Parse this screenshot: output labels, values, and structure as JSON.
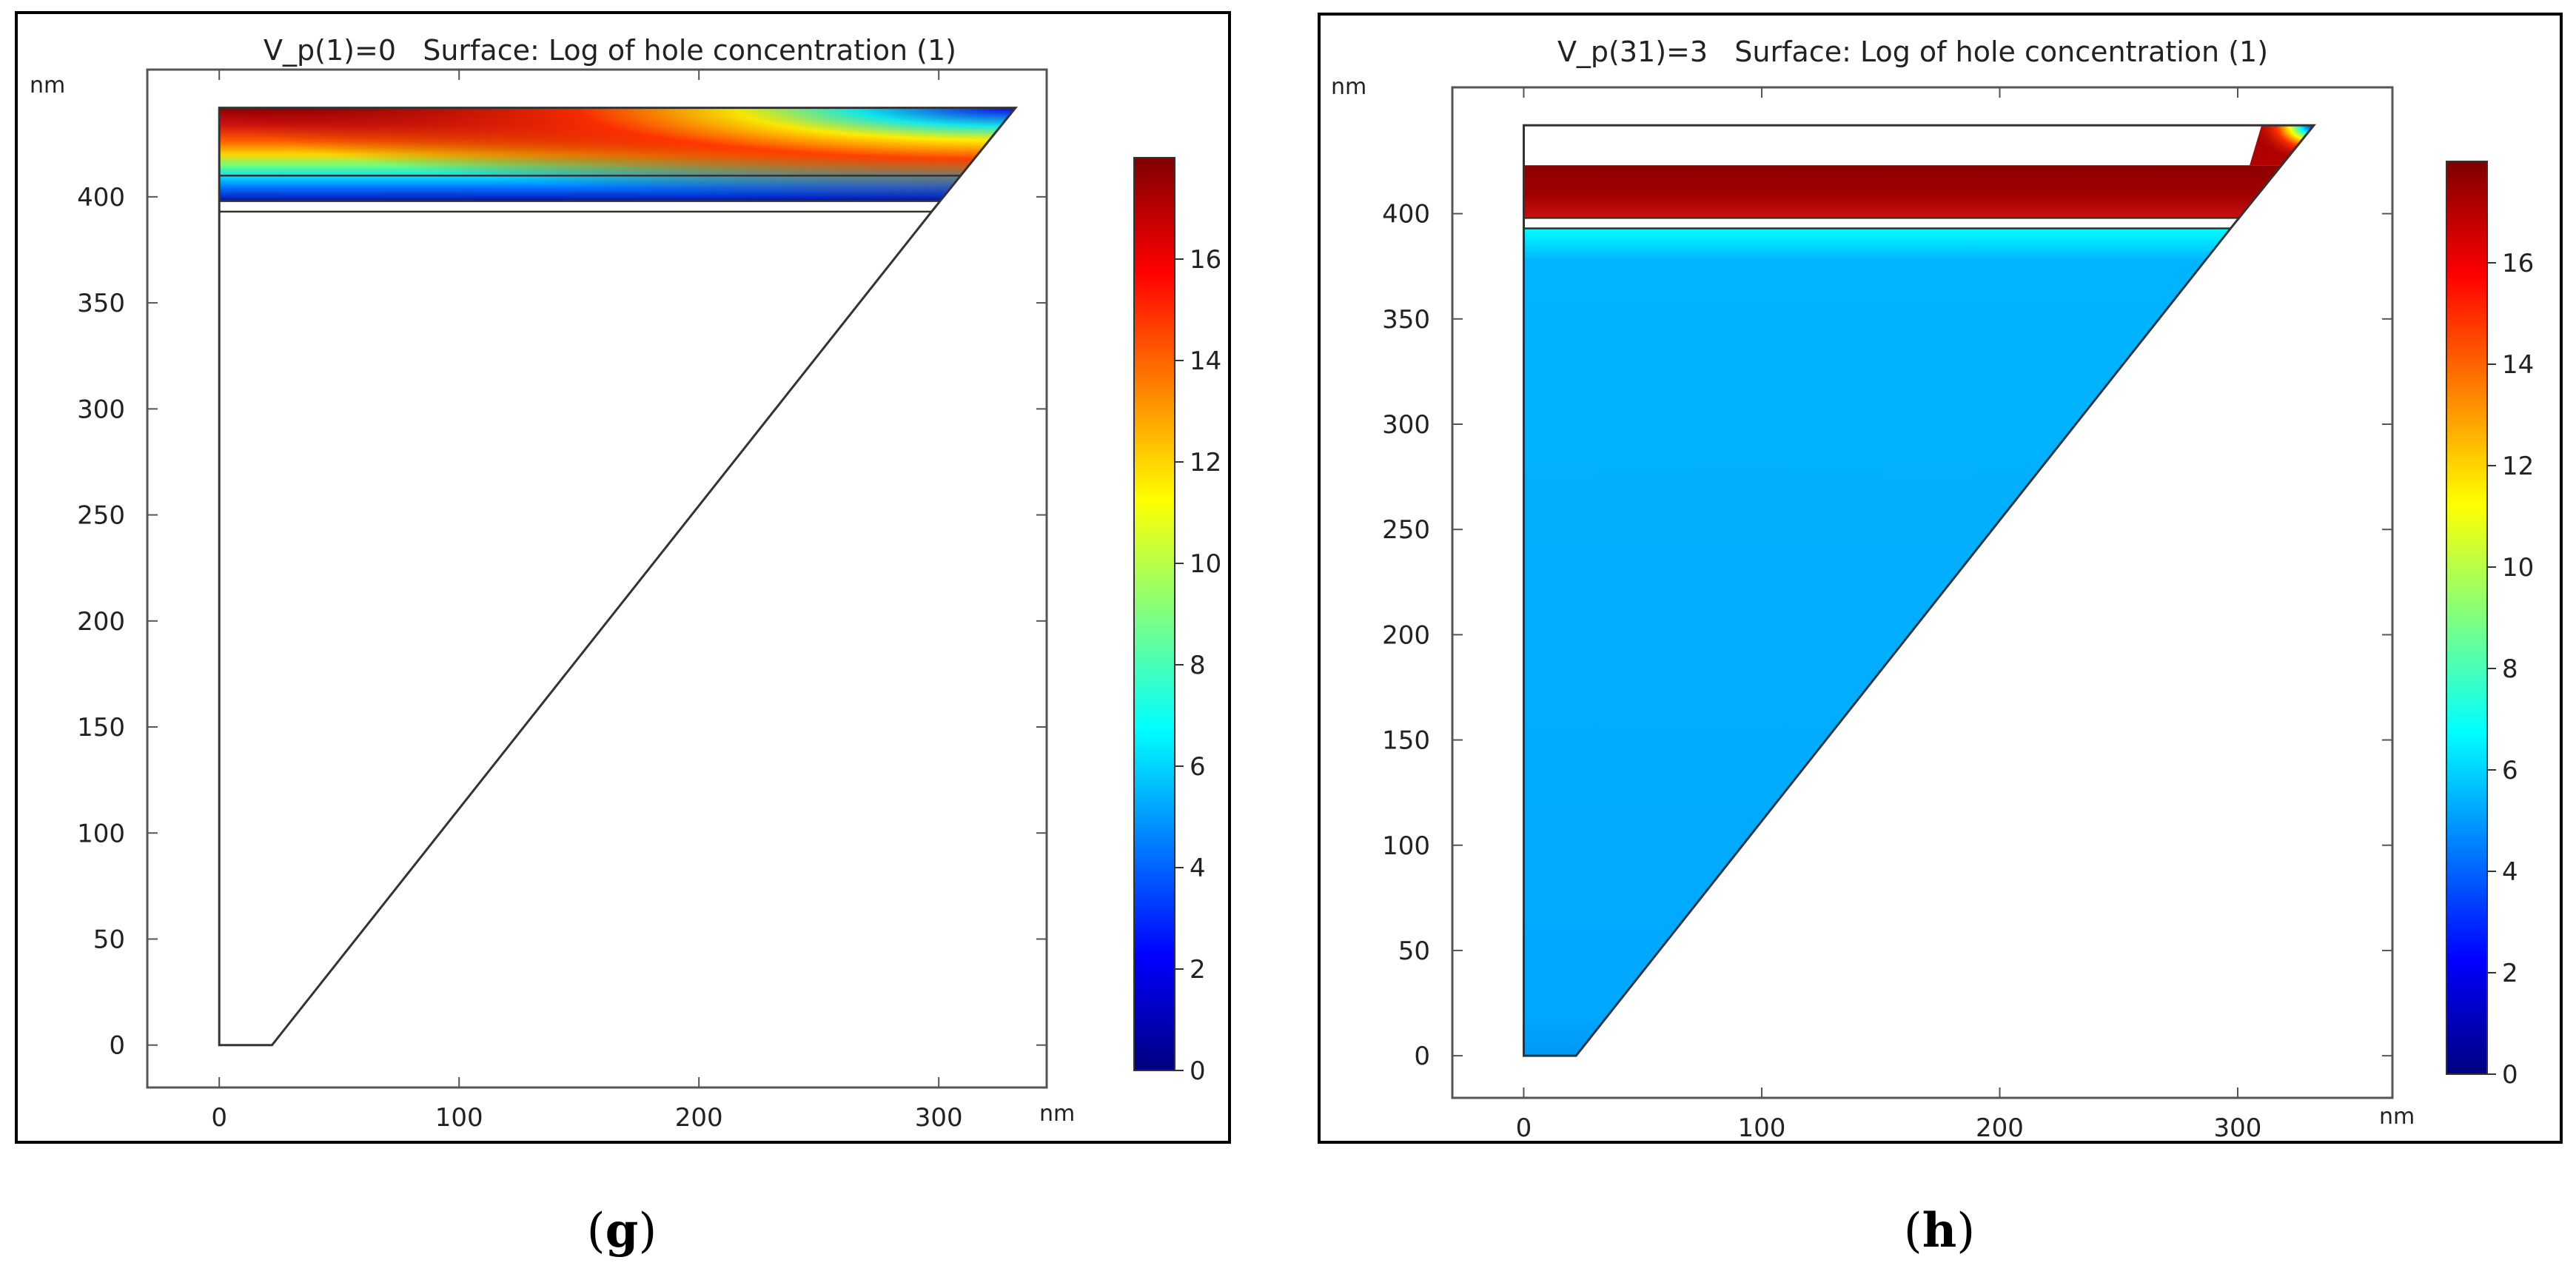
{
  "chart_data": [
    {
      "type": "heatmap",
      "panel_label": "g",
      "title": "V_p(1)=0   Surface: Log of hole concentration (1)",
      "x_unit": "nm",
      "y_unit": "nm",
      "xlim": [
        -30,
        345
      ],
      "ylim": [
        -20,
        460
      ],
      "x_ticks": [
        0,
        100,
        200,
        300
      ],
      "y_ticks": [
        0,
        50,
        100,
        150,
        200,
        250,
        300,
        350,
        400
      ],
      "colorbar": {
        "min": 0,
        "max": 18,
        "ticks": [
          0,
          2,
          4,
          6,
          8,
          10,
          12,
          14,
          16
        ],
        "colormap": "jet"
      },
      "geometry": {
        "outline": [
          [
            0,
            0
          ],
          [
            22,
            0
          ],
          [
            297,
            393
          ],
          [
            332,
            442
          ],
          [
            0,
            442
          ]
        ],
        "layer_lines_y": [
          393,
          398,
          410
        ]
      },
      "surface": {
        "region": "top contact layers (y 398–442 nm)",
        "range": [
          2,
          18
        ],
        "bulk_filled": false
      }
    },
    {
      "type": "heatmap",
      "panel_label": "h",
      "title": "V_p(31)=3   Surface: Log of hole concentration (1)",
      "x_unit": "nm",
      "y_unit": "nm",
      "xlim": [
        -30,
        365
      ],
      "ylim": [
        -20,
        460
      ],
      "x_ticks": [
        0,
        100,
        200,
        300
      ],
      "y_ticks": [
        0,
        50,
        100,
        150,
        200,
        250,
        300,
        350,
        400
      ],
      "colorbar": {
        "min": 0,
        "max": 18,
        "ticks": [
          0,
          2,
          4,
          6,
          8,
          10,
          12,
          14,
          16
        ],
        "colormap": "jet"
      },
      "geometry": {
        "outline": [
          [
            0,
            0
          ],
          [
            22,
            0
          ],
          [
            297,
            393
          ],
          [
            332,
            442
          ],
          [
            0,
            442
          ]
        ],
        "layer_lines_y": [
          393,
          398
        ]
      },
      "surface": {
        "region": "contact layer ~18, bulk ~5",
        "contact_value": 18,
        "bulk_value": 5,
        "bulk_filled": true
      }
    }
  ],
  "captions": {
    "g": "g",
    "h": "h"
  }
}
